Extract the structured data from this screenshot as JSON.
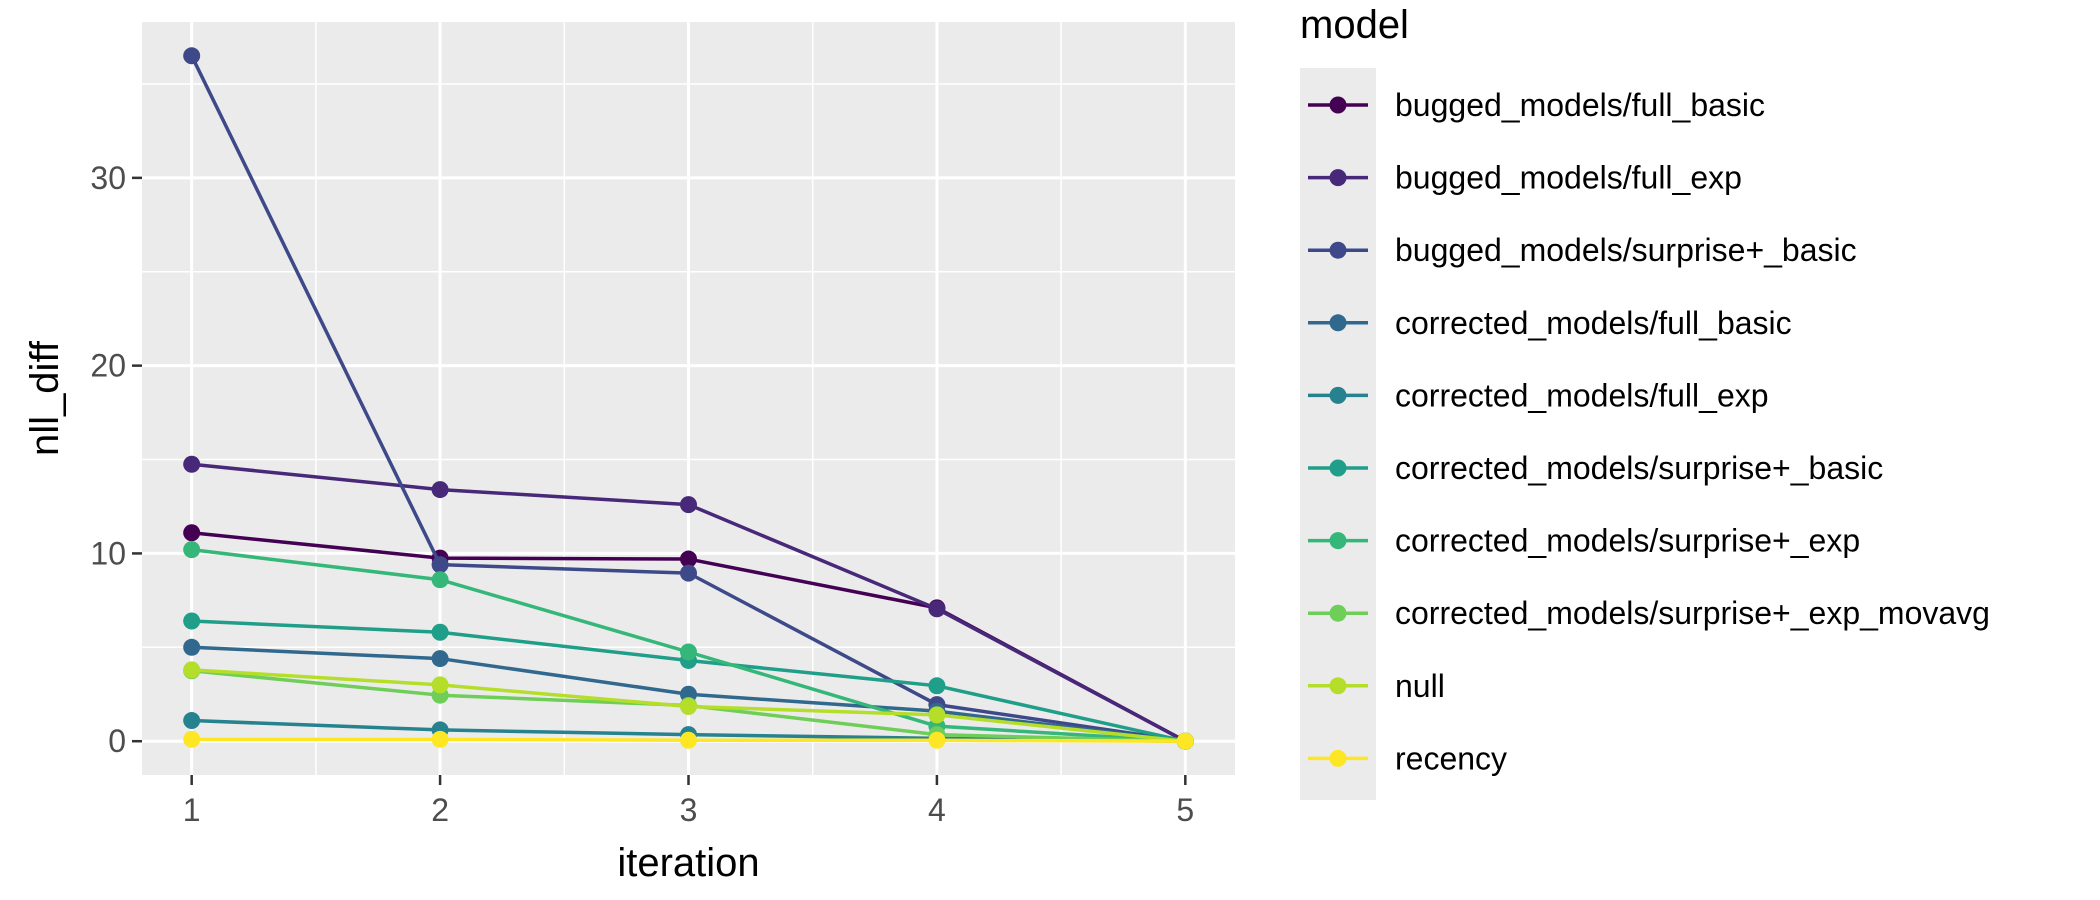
{
  "chart_data": {
    "type": "line",
    "xlabel": "iteration",
    "ylabel": "nll_diff",
    "x": [
      1,
      2,
      3,
      4,
      5
    ],
    "x_ticks": [
      "1",
      "2",
      "3",
      "4",
      "5"
    ],
    "y_ticks": [
      "0",
      "10",
      "20",
      "30"
    ],
    "xlim": [
      0.8,
      5.2
    ],
    "ylim": [
      -1.8,
      38.3
    ],
    "grid": true,
    "legend_title": "model",
    "legend_position": "right",
    "series": [
      {
        "name": "bugged_models/full_basic",
        "color": "#440154",
        "values": [
          11.1,
          9.75,
          9.7,
          7.1,
          0
        ]
      },
      {
        "name": "bugged_models/full_exp",
        "color": "#482878",
        "values": [
          14.75,
          13.4,
          12.6,
          7.05,
          0
        ]
      },
      {
        "name": "bugged_models/surprise+_basic",
        "color": "#3e4989",
        "values": [
          36.5,
          9.4,
          8.95,
          1.95,
          0
        ]
      },
      {
        "name": "corrected_models/full_basic",
        "color": "#31688e",
        "values": [
          5.0,
          4.4,
          2.5,
          1.6,
          0
        ]
      },
      {
        "name": "corrected_models/full_exp",
        "color": "#26828e",
        "values": [
          1.1,
          0.6,
          0.35,
          0.15,
          0
        ]
      },
      {
        "name": "corrected_models/surprise+_basic",
        "color": "#1f9e89",
        "values": [
          6.4,
          5.8,
          4.3,
          2.95,
          0
        ]
      },
      {
        "name": "corrected_models/surprise+_exp",
        "color": "#35b779",
        "values": [
          10.2,
          8.6,
          4.75,
          0.8,
          0
        ]
      },
      {
        "name": "corrected_models/surprise+_exp_movavg",
        "color": "#6ece58",
        "values": [
          3.75,
          2.45,
          1.9,
          0.35,
          0
        ]
      },
      {
        "name": "null",
        "color": "#b5de2b",
        "values": [
          3.8,
          3.0,
          1.85,
          1.4,
          0
        ]
      },
      {
        "name": "recency",
        "color": "#fde725",
        "values": [
          0.1,
          0.1,
          0.05,
          0.05,
          0
        ]
      }
    ]
  }
}
